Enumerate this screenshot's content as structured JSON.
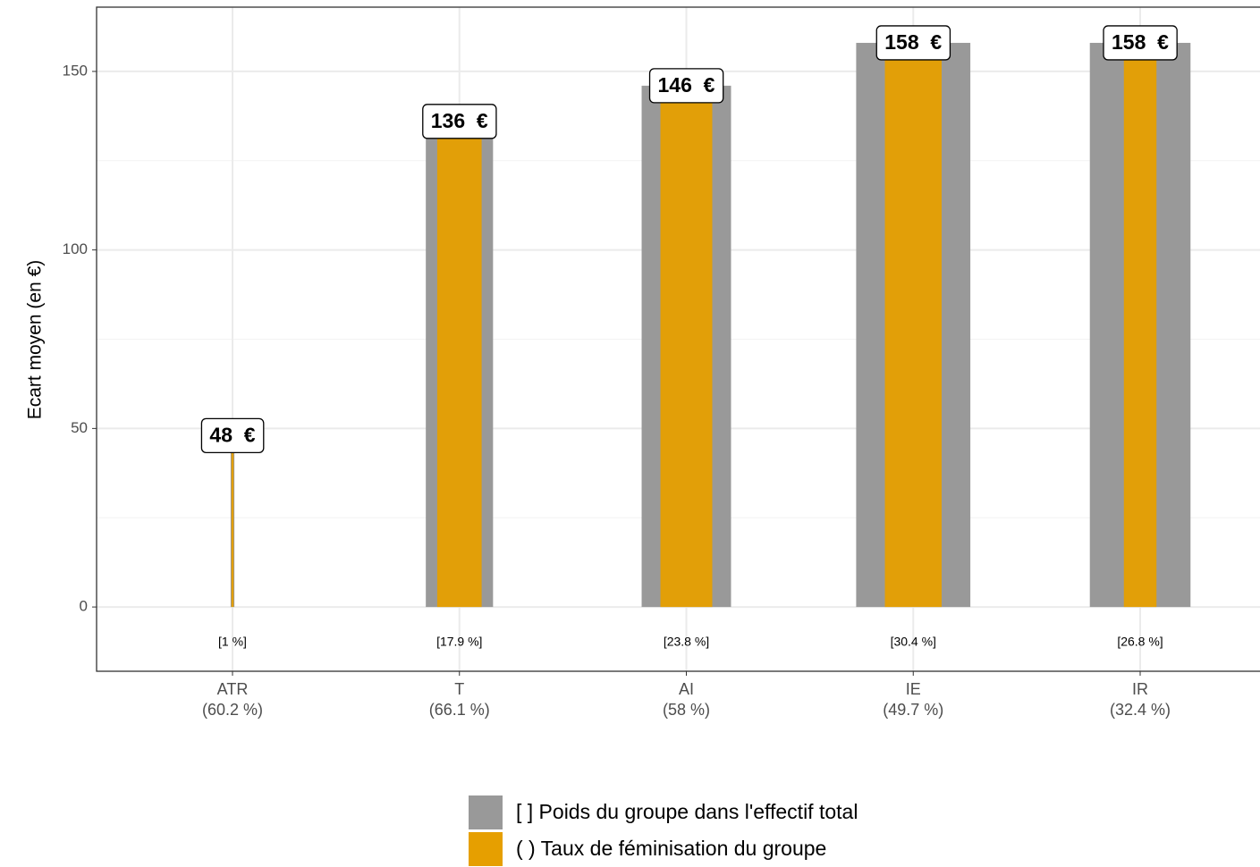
{
  "chart_data": {
    "type": "bar",
    "y_label": "Ecart moyen (en €)",
    "categories": [
      "ATR",
      "T",
      "AI",
      "IE",
      "IR"
    ],
    "values": [
      48,
      136,
      146,
      158,
      158
    ],
    "value_labels": [
      "48  €",
      "136  €",
      "146  €",
      "158  €",
      "158  €"
    ],
    "weights": [
      1,
      17.9,
      23.8,
      30.4,
      26.8
    ],
    "weight_labels": [
      "[1 %]",
      "[17.9 %]",
      "[23.8 %]",
      "[30.4 %]",
      "[26.8 %]"
    ],
    "feminization": [
      60.2,
      66.1,
      58,
      49.7,
      32.4
    ],
    "feminization_labels": [
      "(60.2 %)",
      "(66.1 %)",
      "(58 %)",
      "(49.7 %)",
      "(32.4 %)"
    ],
    "legend": [
      {
        "name": "[ ] Poids du groupe dans l'effectif total",
        "color": "#999999"
      },
      {
        "name": "( ) Taux de féminisation du groupe",
        "color": "#E69F00"
      }
    ],
    "ylim": [
      -18,
      168
    ],
    "yticks": [
      0,
      50,
      100,
      150
    ],
    "grid": true
  }
}
